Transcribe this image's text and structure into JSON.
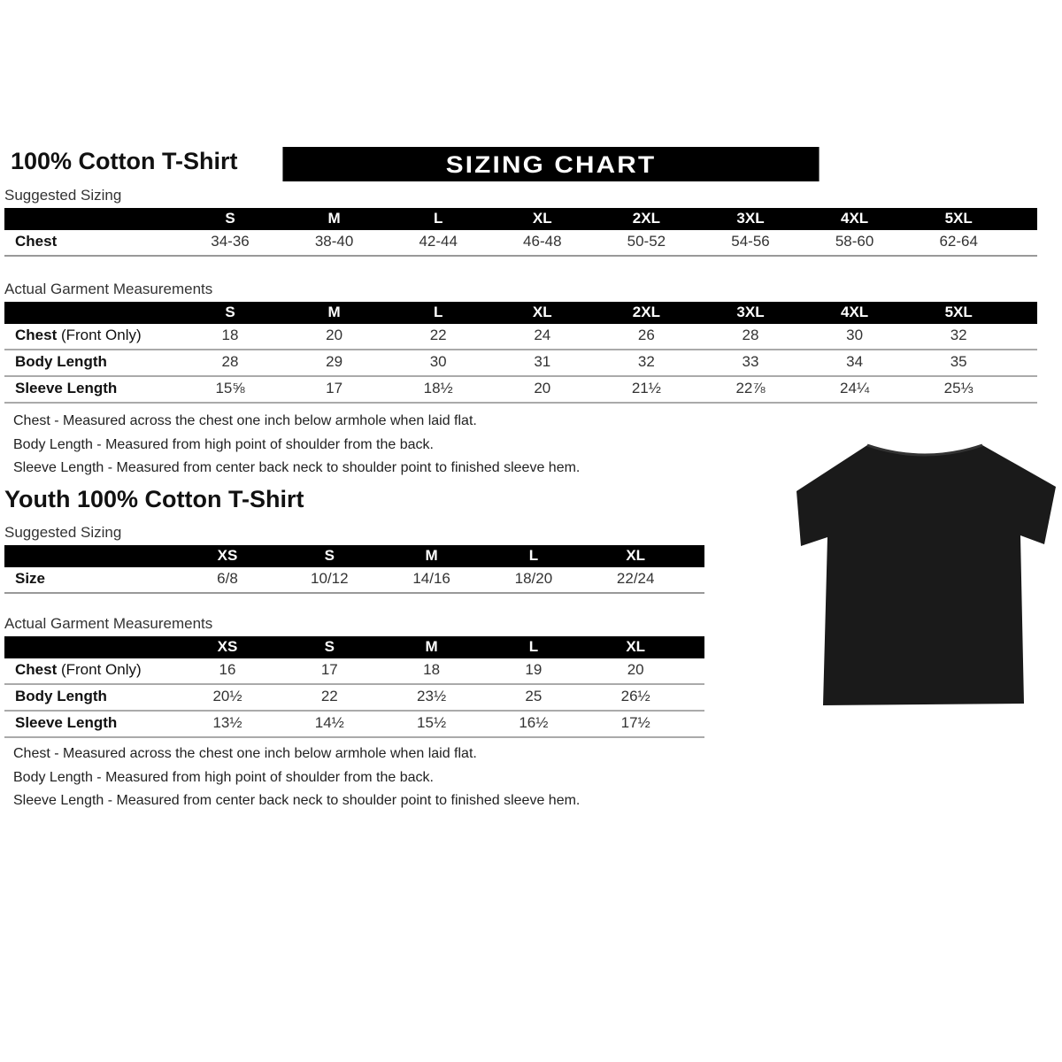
{
  "adult": {
    "title": "100% Cotton T-Shirt",
    "banner": "SIZING CHART",
    "suggested_label": "Suggested Sizing",
    "sizes": [
      "S",
      "M",
      "L",
      "XL",
      "2XL",
      "3XL",
      "4XL",
      "5XL"
    ],
    "chest_label": "Chest",
    "chest": [
      "34-36",
      "38-40",
      "42-44",
      "46-48",
      "50-52",
      "54-56",
      "58-60",
      "62-64"
    ],
    "actual_label": "Actual Garment Measurements",
    "rows": [
      {
        "label": "Chest",
        "label_extra": "(Front Only)",
        "values": [
          "18",
          "20",
          "22",
          "24",
          "26",
          "28",
          "30",
          "32"
        ]
      },
      {
        "label": "Body Length",
        "label_extra": "",
        "values": [
          "28",
          "29",
          "30",
          "31",
          "32",
          "33",
          "34",
          "35"
        ]
      },
      {
        "label": "Sleeve Length",
        "label_extra": "",
        "values": [
          "15⅝",
          "17",
          "18½",
          "20",
          "21½",
          "22⅞",
          "24¼",
          "25⅓"
        ]
      }
    ],
    "notes": [
      "Chest - Measured across the chest one inch below armhole when laid flat.",
      "Body Length - Measured from high point of shoulder from the back.",
      "Sleeve Length - Measured from center back neck to shoulder point to finished sleeve hem."
    ]
  },
  "youth": {
    "title": "Youth 100% Cotton T-Shirt",
    "suggested_label": "Suggested Sizing",
    "sizes": [
      "XS",
      "S",
      "M",
      "L",
      "XL"
    ],
    "size_label": "Size",
    "size_values": [
      "6/8",
      "10/12",
      "14/16",
      "18/20",
      "22/24"
    ],
    "actual_label": "Actual Garment Measurements",
    "rows": [
      {
        "label": "Chest",
        "label_extra": "(Front Only)",
        "values": [
          "16",
          "17",
          "18",
          "19",
          "20"
        ]
      },
      {
        "label": "Body Length",
        "label_extra": "",
        "values": [
          "20½",
          "22",
          "23½",
          "25",
          "26½"
        ]
      },
      {
        "label": "Sleeve Length",
        "label_extra": "",
        "values": [
          "13½",
          "14½",
          "15½",
          "16½",
          "17½"
        ]
      }
    ],
    "notes": [
      "Chest - Measured across the chest one inch below armhole when laid flat.",
      "Body Length - Measured from high point of shoulder from the back.",
      "Sleeve Length - Measured from center back neck to shoulder point to finished sleeve hem."
    ]
  },
  "shirt_color": "#1a1a1a"
}
